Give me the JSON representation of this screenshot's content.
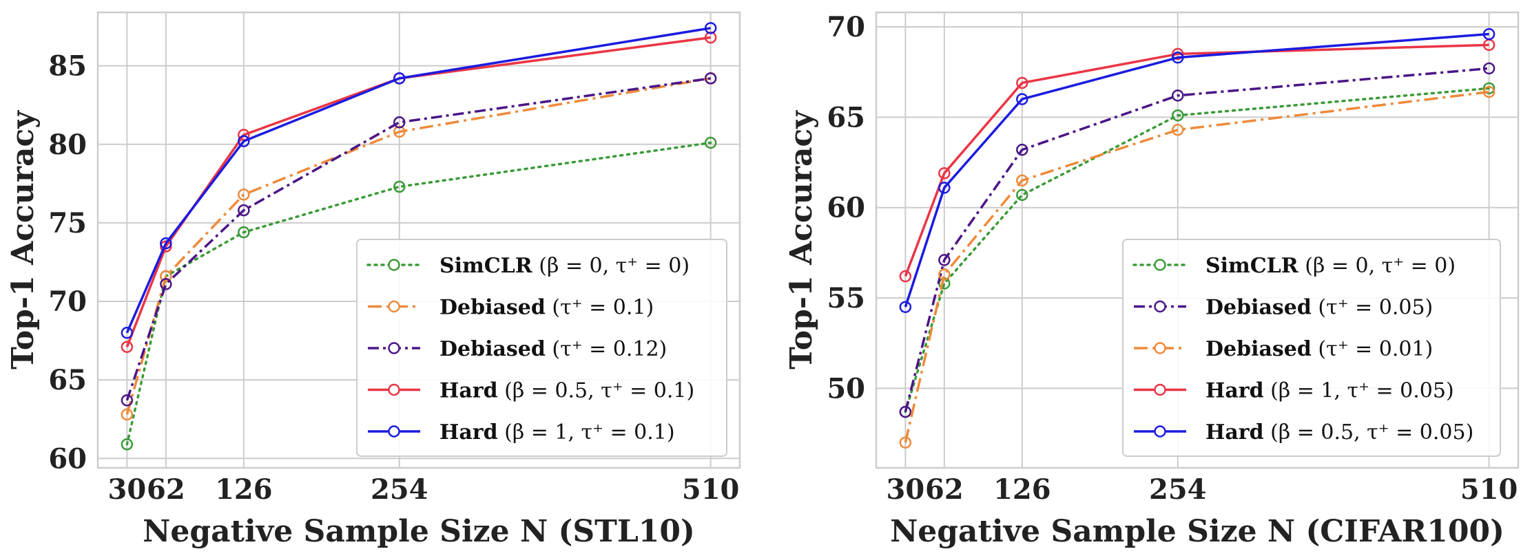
{
  "chart_data": [
    {
      "type": "line",
      "title": "",
      "xlabel": "Negative Sample Size N (STL10)",
      "ylabel": "Top-1 Accuracy",
      "x": [
        30,
        62,
        126,
        254,
        510
      ],
      "x_ticks": [
        "30",
        "62",
        "126",
        "254",
        "510"
      ],
      "xlim": [
        6,
        534
      ],
      "ylim": [
        59.4,
        88.4
      ],
      "y_ticks": [
        60,
        65,
        70,
        75,
        80,
        85
      ],
      "y_tick_labels": [
        "60",
        "65",
        "70",
        "75",
        "80",
        "85"
      ],
      "grid": true,
      "legend_position": "lower-right",
      "series": [
        {
          "name": "SimCLR",
          "legend_bold": "SimCLR",
          "legend_rest": " (β = 0, τ⁺ = 0)",
          "color": "#3a9a36",
          "dash": "3,7",
          "values": [
            60.9,
            71.6,
            74.4,
            77.3,
            80.1
          ]
        },
        {
          "name": "Debiased τ+=0.1",
          "legend_bold": "Debiased",
          "legend_rest": " (τ⁺ = 0.1)",
          "color": "#ee8a3a",
          "dash": "20,7,4,7",
          "values": [
            62.8,
            71.6,
            76.8,
            80.8,
            84.2
          ]
        },
        {
          "name": "Debiased τ+=0.12",
          "legend_bold": "Debiased",
          "legend_rest": " (τ⁺ = 0.12)",
          "color": "#4b1587",
          "dash": "16,6,4,6",
          "values": [
            63.7,
            71.1,
            75.8,
            81.4,
            84.2
          ]
        },
        {
          "name": "Hard β=0.5",
          "legend_bold": "Hard",
          "legend_rest": " (β = 0.5, τ⁺ = 0.1)",
          "color": "#ea3545",
          "dash": "",
          "values": [
            67.1,
            73.5,
            80.6,
            84.2,
            86.8
          ]
        },
        {
          "name": "Hard β=1",
          "legend_bold": "Hard",
          "legend_rest": " (β = 1, τ⁺ = 0.1)",
          "color": "#1b1be0",
          "dash": "",
          "values": [
            68.0,
            73.7,
            80.2,
            84.2,
            87.4
          ]
        }
      ]
    },
    {
      "type": "line",
      "title": "",
      "xlabel": "Negative Sample Size N (CIFAR100)",
      "ylabel": "Top-1 Accuracy",
      "x": [
        30,
        62,
        126,
        254,
        510
      ],
      "x_ticks": [
        "30",
        "62",
        "126",
        "254",
        "510"
      ],
      "xlim": [
        6,
        534
      ],
      "ylim": [
        45.6,
        70.8
      ],
      "y_ticks": [
        50,
        55,
        60,
        65,
        70
      ],
      "y_tick_labels": [
        "50",
        "55",
        "60",
        "65",
        "70"
      ],
      "grid": true,
      "legend_position": "lower-right",
      "series": [
        {
          "name": "SimCLR",
          "legend_bold": "SimCLR",
          "legend_rest": " (β = 0, τ⁺ = 0)",
          "color": "#3a9a36",
          "dash": "3,7",
          "values": [
            48.7,
            55.8,
            60.7,
            65.1,
            66.6
          ]
        },
        {
          "name": "Debiased τ+=0.05",
          "legend_bold": "Debiased",
          "legend_rest": " (τ⁺ = 0.05)",
          "color": "#4b1587",
          "dash": "16,6,4,6",
          "values": [
            48.7,
            57.1,
            63.2,
            66.2,
            67.7
          ]
        },
        {
          "name": "Debiased τ+=0.01",
          "legend_bold": "Debiased",
          "legend_rest": " (τ⁺ = 0.01)",
          "color": "#ee8a3a",
          "dash": "20,7,4,7",
          "values": [
            47.0,
            56.3,
            61.5,
            64.3,
            66.4
          ]
        },
        {
          "name": "Hard β=1",
          "legend_bold": "Hard",
          "legend_rest": " (β = 1, τ⁺ = 0.05)",
          "color": "#ea3545",
          "dash": "",
          "values": [
            56.2,
            61.9,
            66.9,
            68.5,
            69.0
          ]
        },
        {
          "name": "Hard β=0.5",
          "legend_bold": "Hard",
          "legend_rest": " (β = 0.5, τ⁺ = 0.05)",
          "color": "#1b1be0",
          "dash": "",
          "values": [
            54.5,
            61.1,
            66.0,
            68.3,
            69.6
          ]
        }
      ]
    }
  ]
}
